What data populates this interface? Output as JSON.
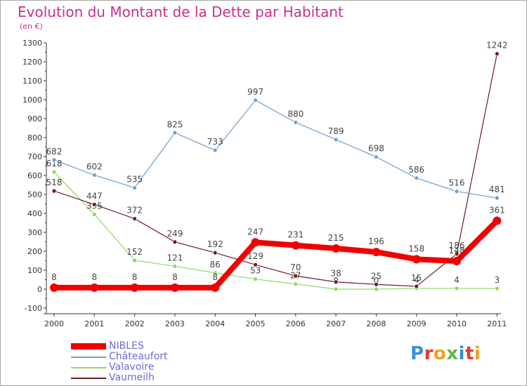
{
  "title": "Evolution du Montant de la Dette par Habitant",
  "subtitle": "(en €)",
  "logo": {
    "text": "Proxiti",
    "letter_colors": [
      "#3a8fd6",
      "#e23b2e",
      "#f0a020",
      "#62b946",
      "#3a8fd6",
      "#e23b2e",
      "#f0a020"
    ]
  },
  "chart_data": {
    "type": "line",
    "x": [
      "2000",
      "2001",
      "2002",
      "2003",
      "2004",
      "2005",
      "2006",
      "2007",
      "2008",
      "2009",
      "2010",
      "2011"
    ],
    "ylim": [
      -100,
      1300
    ],
    "yticks": [
      "-100",
      "0",
      "100",
      "200",
      "300",
      "400",
      "500",
      "600",
      "700",
      "800",
      "900",
      "1000",
      "1100",
      "1200",
      "1300"
    ],
    "grid": false,
    "legend": "bottom-left",
    "series": [
      {
        "name": "Valavoire",
        "color": "#8fd85f",
        "values": [
          618,
          395,
          152,
          121,
          86,
          53,
          27,
          0,
          0,
          4,
          4,
          3
        ],
        "labels": [
          "618",
          "395",
          "152",
          "121",
          "86",
          "53",
          "27",
          "0",
          "0",
          "4",
          "4",
          "3"
        ]
      },
      {
        "name": "Vaumeilh",
        "color": "#6b1c24",
        "values": [
          518,
          447,
          372,
          249,
          192,
          129,
          70,
          38,
          25,
          15,
          186,
          1242
        ],
        "labels": [
          "518",
          "447",
          "372",
          "249",
          "192",
          "129",
          "70",
          "38",
          "25",
          "15",
          "186",
          "1242"
        ]
      },
      {
        "name": "Châteaufort",
        "color": "#6f9fd0",
        "values": [
          682,
          602,
          535,
          825,
          733,
          997,
          880,
          789,
          698,
          586,
          516,
          481
        ],
        "labels": [
          "682",
          "602",
          "535",
          "825",
          "733",
          "997",
          "880",
          "789",
          "698",
          "586",
          "516",
          "481"
        ]
      },
      {
        "name": "NIBLES",
        "color": "#f00000",
        "values": [
          8,
          8,
          8,
          8,
          8,
          247,
          231,
          215,
          196,
          158,
          148,
          361
        ],
        "labels": [
          "8",
          "8",
          "8",
          "8",
          "8",
          "247",
          "231",
          "215",
          "196",
          "158",
          "148",
          "361"
        ]
      }
    ],
    "legend_order": [
      "NIBLES",
      "Châteaufort",
      "Valavoire",
      "Vaumeilh"
    ]
  }
}
